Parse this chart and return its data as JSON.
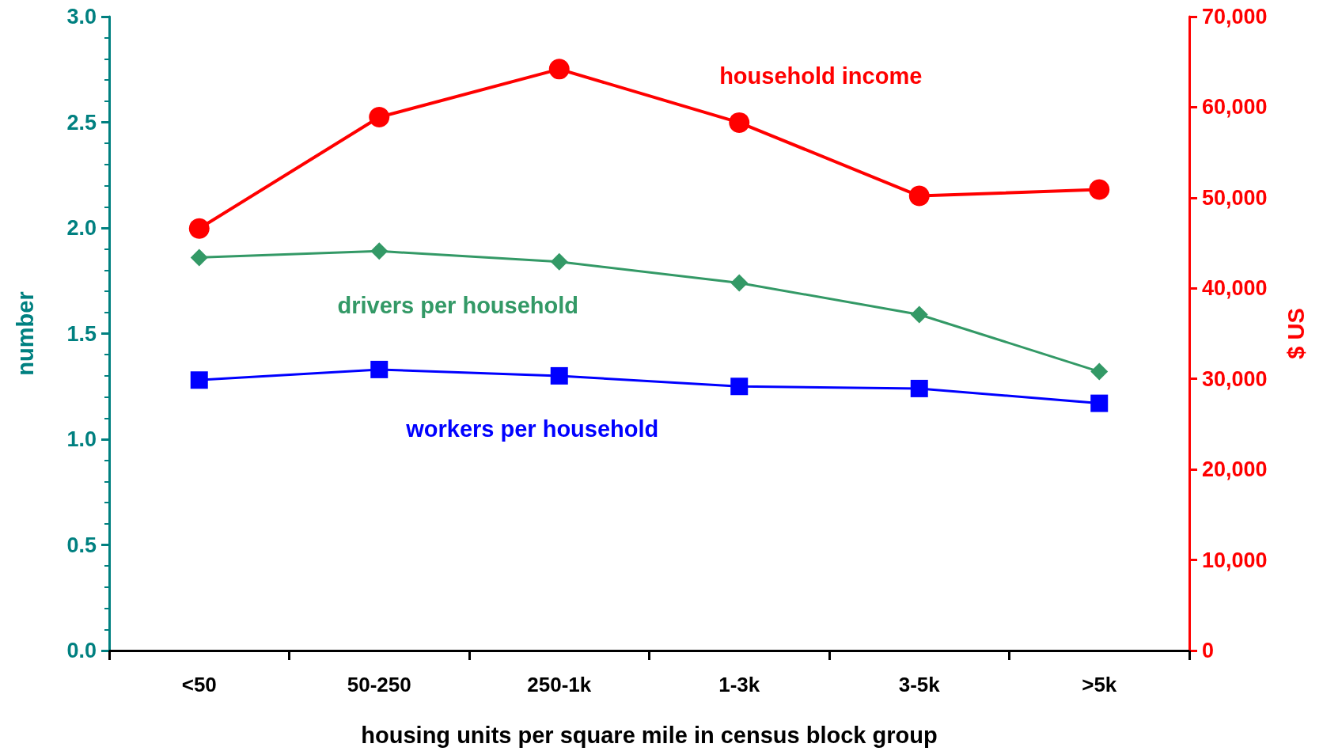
{
  "chart_data": {
    "type": "line",
    "xlabel": "housing units per square mile in census block group",
    "ylabel": "number",
    "y2label": "$ US",
    "categories": [
      "<50",
      "50-250",
      "250-1k",
      "1-3k",
      "3-5k",
      ">5k"
    ],
    "series": [
      {
        "name": "household income",
        "color": "#ff0000",
        "axis": "y2",
        "marker": "circle",
        "values": [
          46600,
          58900,
          64200,
          58300,
          50200,
          50900
        ]
      },
      {
        "name": "drivers per household",
        "color": "#339966",
        "marker": "diamond",
        "values": [
          1.86,
          1.89,
          1.84,
          1.74,
          1.59,
          1.32
        ]
      },
      {
        "name": "workers per household",
        "color": "#0000ff",
        "marker": "square",
        "values": [
          1.28,
          1.33,
          1.3,
          1.25,
          1.24,
          1.17
        ]
      }
    ],
    "ylim": [
      0,
      3
    ],
    "yticks": [
      {
        "value": 0,
        "label": "0.0"
      },
      0.5,
      {
        "value": 1,
        "label": "1.0"
      },
      1.5,
      {
        "value": 2,
        "label": "2.0"
      },
      2.5,
      {
        "value": 3,
        "label": "3.0"
      }
    ],
    "y2lim": [
      0,
      70000
    ],
    "y2ticks": [
      0,
      {
        "value": 10000,
        "label": "10,000"
      },
      {
        "value": 20000,
        "label": "20,000"
      },
      {
        "value": 30000,
        "label": "30,000"
      },
      {
        "value": 40000,
        "label": "40,000"
      },
      {
        "value": 50000,
        "label": "50,000"
      },
      {
        "value": 60000,
        "label": "60,000"
      },
      {
        "value": 70000,
        "label": "70,000"
      }
    ],
    "grid": false,
    "legend": false
  }
}
